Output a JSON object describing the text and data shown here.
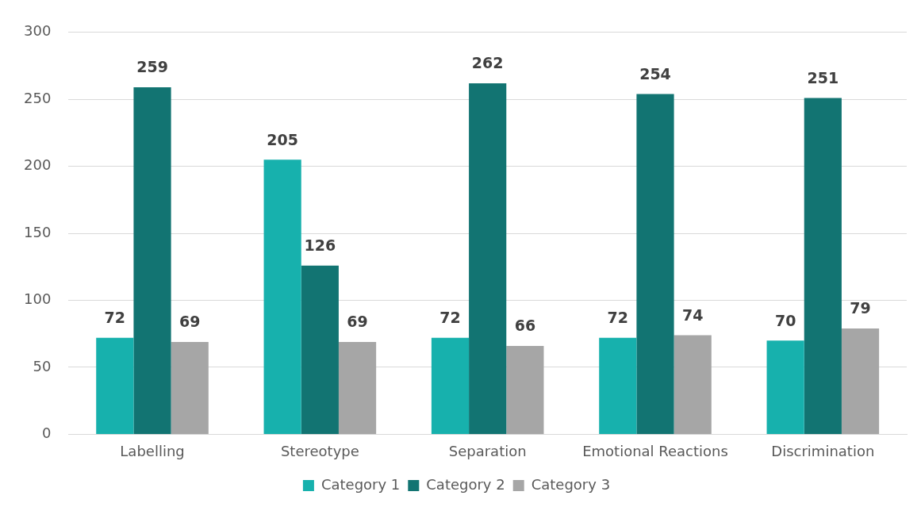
{
  "chart_data": {
    "type": "bar",
    "categories": [
      "Labelling",
      "Stereotype",
      "Separation",
      "Emotional Reactions",
      "Discrimination"
    ],
    "series": [
      {
        "name": "Category 1",
        "color": "#17b1ad",
        "values": [
          72,
          205,
          72,
          72,
          70
        ]
      },
      {
        "name": "Category 2",
        "color": "#127472",
        "values": [
          259,
          126,
          262,
          254,
          251
        ]
      },
      {
        "name": "Category 3",
        "color": "#a6a6a6",
        "values": [
          69,
          69,
          66,
          74,
          79
        ]
      }
    ],
    "ylim": [
      0,
      300
    ],
    "yticks": [
      0,
      50,
      100,
      150,
      200,
      250,
      300
    ],
    "grid": "y",
    "legend": "bottom",
    "data_labels": true
  }
}
